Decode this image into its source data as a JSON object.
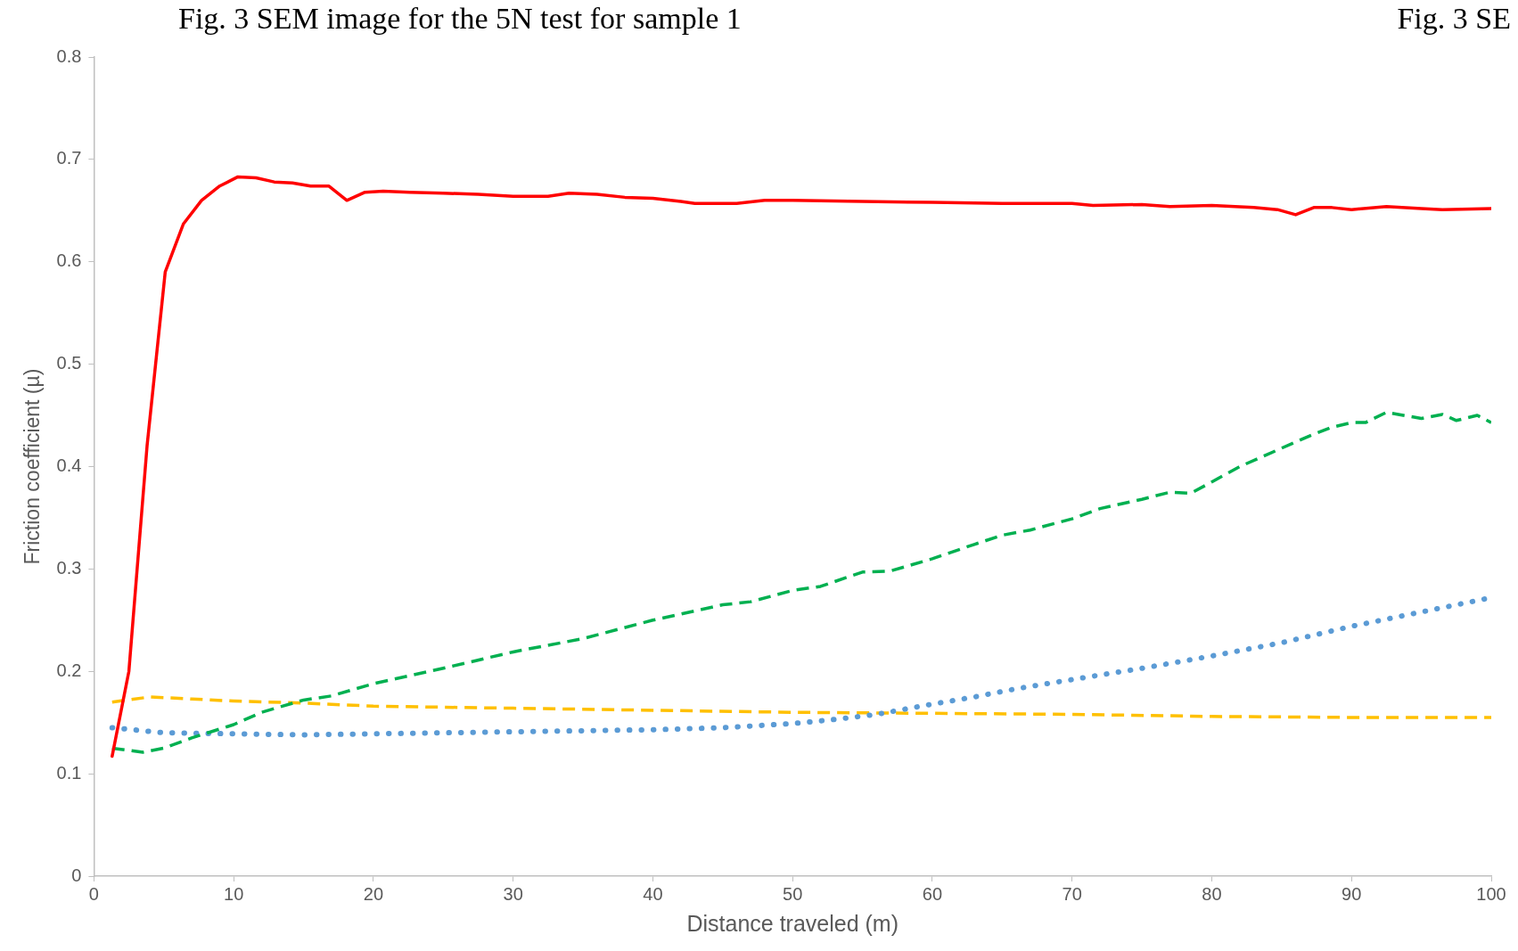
{
  "chart_data": {
    "type": "line",
    "xlabel": "Distance traveled (m)",
    "ylabel": "Friction coefficient (µ)",
    "annotations": [
      "Fig. 3 SEM image for the 5N test for sample 1",
      "Fig. 3 SE"
    ],
    "xlim": [
      0,
      100
    ],
    "xticks": [
      0,
      10,
      20,
      30,
      40,
      50,
      60,
      70,
      80,
      90,
      100
    ],
    "ylim": [
      0,
      0.8
    ],
    "yticks": [
      0,
      0.1,
      0.2,
      0.3,
      0.4,
      0.5,
      0.6,
      0.7,
      0.8
    ],
    "grid": false,
    "legend": false,
    "marker": "none",
    "series": [
      {
        "color": "#ff0000",
        "line_style": "solid",
        "x": [
          1.3,
          2.5,
          3.8,
          5.1,
          6.4,
          7.7,
          9,
          10.3,
          11.6,
          12.9,
          14.2,
          15.5,
          16.8,
          18.1,
          19.4,
          20.7,
          22.6,
          25,
          27.5,
          30,
          32.5,
          34,
          36,
          38,
          40,
          42,
          43,
          46,
          48,
          50,
          55,
          60,
          65,
          70,
          71.5,
          75,
          77,
          80,
          83,
          84.7,
          86,
          87.3,
          88.6,
          90,
          92.5,
          95,
          96.5,
          100
        ],
        "values": [
          0.117,
          0.2,
          0.42,
          0.59,
          0.637,
          0.66,
          0.674,
          0.683,
          0.682,
          0.678,
          0.677,
          0.674,
          0.674,
          0.66,
          0.668,
          0.669,
          0.668,
          0.667,
          0.666,
          0.664,
          0.664,
          0.667,
          0.666,
          0.663,
          0.662,
          0.659,
          0.657,
          0.657,
          0.66,
          0.66,
          0.659,
          0.658,
          0.657,
          0.657,
          0.655,
          0.656,
          0.654,
          0.655,
          0.653,
          0.651,
          0.646,
          0.653,
          0.653,
          0.651,
          0.654,
          0.652,
          0.651,
          0.652
        ]
      },
      {
        "color": "#00b050",
        "line_style": "dashed",
        "x": [
          1.3,
          3.5,
          5,
          7,
          10,
          12,
          15,
          17,
          20,
          25,
          30,
          35,
          40,
          45,
          47,
          50,
          52,
          55,
          57,
          60,
          63,
          65,
          67,
          70,
          72,
          75,
          77,
          78.5,
          80,
          82,
          85,
          87,
          88.5,
          90,
          91,
          92.5,
          95,
          96.5,
          97.5,
          99,
          100
        ],
        "values": [
          0.125,
          0.121,
          0.125,
          0.135,
          0.148,
          0.16,
          0.172,
          0.176,
          0.188,
          0.203,
          0.219,
          0.232,
          0.25,
          0.265,
          0.268,
          0.279,
          0.283,
          0.297,
          0.298,
          0.31,
          0.324,
          0.333,
          0.338,
          0.349,
          0.359,
          0.368,
          0.375,
          0.374,
          0.385,
          0.4,
          0.418,
          0.43,
          0.438,
          0.443,
          0.443,
          0.453,
          0.447,
          0.451,
          0.445,
          0.45,
          0.443
        ]
      },
      {
        "color": "#5b9bd5",
        "line_style": "dotted",
        "x": [
          1.3,
          5,
          10,
          15,
          20,
          30,
          40,
          45,
          50,
          53,
          56,
          58,
          60,
          63,
          66,
          70,
          75,
          80,
          85,
          90,
          95,
          100
        ],
        "values": [
          0.145,
          0.14,
          0.139,
          0.138,
          0.139,
          0.141,
          0.143,
          0.145,
          0.149,
          0.153,
          0.158,
          0.163,
          0.168,
          0.175,
          0.183,
          0.192,
          0.203,
          0.215,
          0.228,
          0.244,
          0.258,
          0.272
        ]
      },
      {
        "color": "#ffc000",
        "line_style": "dashed",
        "x": [
          1.3,
          4,
          7,
          10,
          15,
          20,
          30,
          40,
          50,
          60,
          70,
          80,
          90,
          100
        ],
        "values": [
          0.17,
          0.175,
          0.173,
          0.171,
          0.169,
          0.166,
          0.164,
          0.162,
          0.16,
          0.159,
          0.158,
          0.156,
          0.155,
          0.155
        ]
      }
    ]
  }
}
